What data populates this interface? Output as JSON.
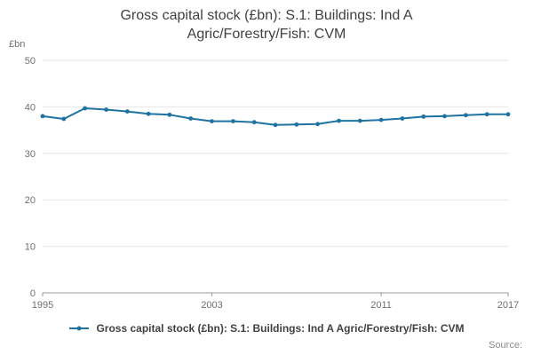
{
  "title": "Gross capital stock (£bn): S.1: Buildings: Ind A Agric/Forestry/Fish: CVM",
  "y_axis_unit": "£bn",
  "source_label": "Source:",
  "legend": {
    "label": "Gross capital stock (£bn): S.1: Buildings: Ind A Agric/Forestry/Fish: CVM"
  },
  "colors": {
    "line": "#1e73a2",
    "grid": "#e6e6e6",
    "axis": "#9b9b9b",
    "title_text": "#414042",
    "tick_text": "#6f6f6f"
  },
  "chart_data": {
    "type": "line",
    "title": "Gross capital stock (£bn): S.1: Buildings: Ind A Agric/Forestry/Fish: CVM",
    "xlabel": "",
    "ylabel": "£bn",
    "ylim": [
      0,
      50
    ],
    "yticks": [
      0,
      10,
      20,
      30,
      40,
      50
    ],
    "xticks": [
      1995,
      2003,
      2011,
      2017
    ],
    "grid": true,
    "legend_position": "bottom",
    "x": [
      1995,
      1996,
      1997,
      1998,
      1999,
      2000,
      2001,
      2002,
      2003,
      2004,
      2005,
      2006,
      2007,
      2008,
      2009,
      2010,
      2011,
      2012,
      2013,
      2014,
      2015,
      2016,
      2017
    ],
    "values": [
      38.0,
      37.4,
      39.7,
      39.4,
      39.0,
      38.5,
      38.3,
      37.5,
      36.9,
      36.9,
      36.7,
      36.1,
      36.2,
      36.3,
      37.0,
      37.0,
      37.2,
      37.5,
      37.9,
      38.0,
      38.2,
      38.4,
      38.4
    ]
  }
}
